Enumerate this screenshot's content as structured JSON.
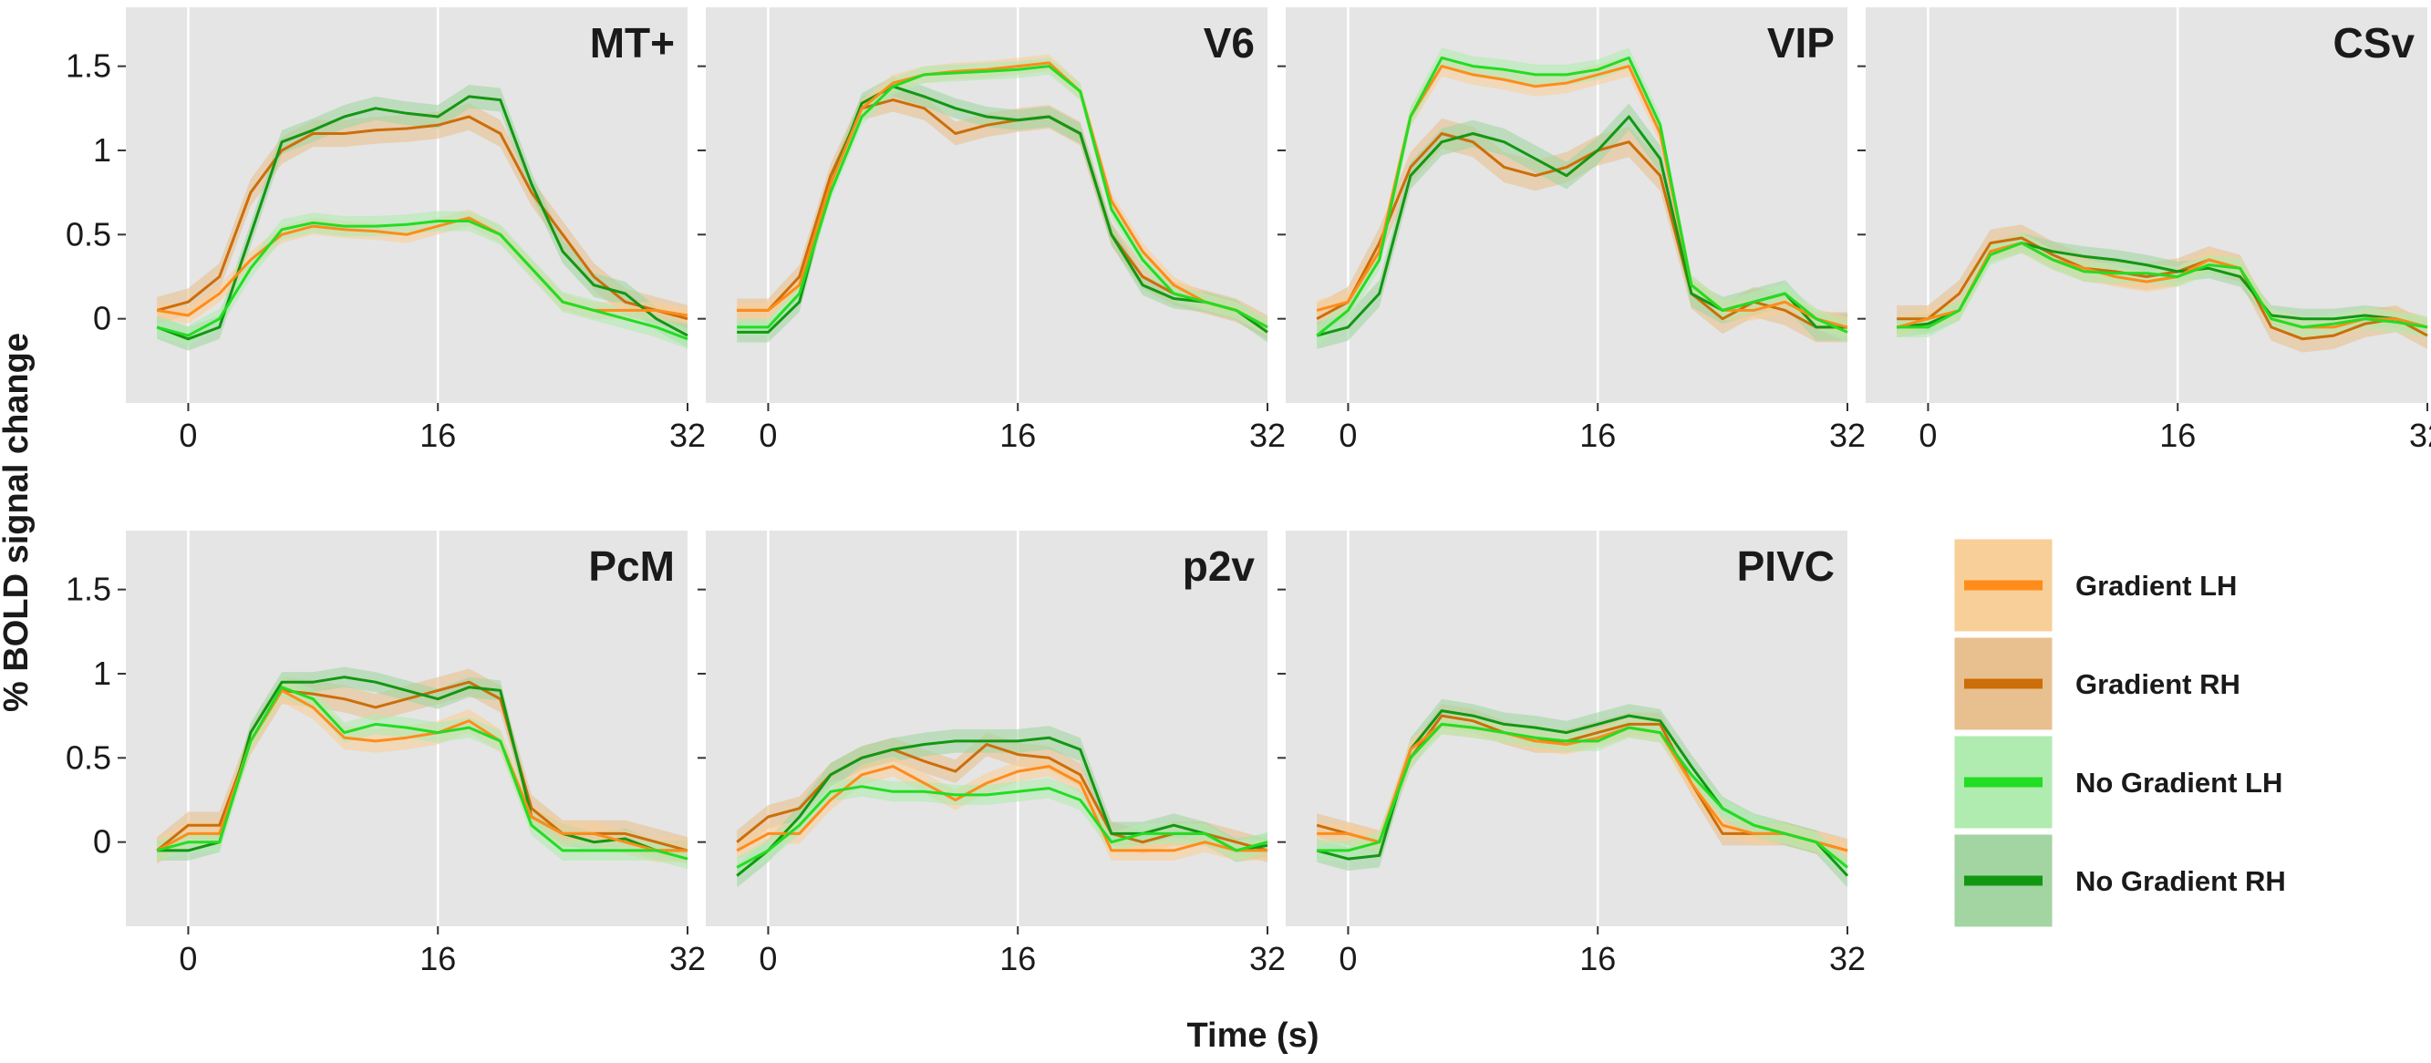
{
  "chart_data": {
    "type": "line",
    "ylabel": "% BOLD signal change",
    "xlabel": "Time (s)",
    "xlim": [
      -4,
      32
    ],
    "ylim": [
      -0.5,
      1.85
    ],
    "x_ticks": [
      0,
      16,
      32
    ],
    "x_tick_labels": [
      "0",
      "16",
      "32"
    ],
    "y_ticks": [
      0,
      0.5,
      1,
      1.5
    ],
    "y_tick_labels": [
      "0",
      "0.5",
      "1",
      "1.5"
    ],
    "vertical_gridlines": [
      0,
      16
    ],
    "legend": {
      "position": "right",
      "entries": [
        {
          "name": "Gradient LH",
          "line_color": "#ff8c1a",
          "band_color": "#f8cf99"
        },
        {
          "name": "Gradient RH",
          "line_color": "#cc6e0a",
          "band_color": "#e8c08f"
        },
        {
          "name": "No Gradient LH",
          "line_color": "#22dd22",
          "band_color": "#b0ebb0"
        },
        {
          "name": "No Gradient RH",
          "line_color": "#139713",
          "band_color": "#a2d5a2"
        }
      ]
    },
    "x": [
      -2,
      0,
      2,
      4,
      6,
      8,
      10,
      12,
      14,
      16,
      18,
      20,
      22,
      24,
      26,
      28,
      30,
      32
    ],
    "panels": [
      {
        "title": "MT+",
        "series": [
          {
            "name": "Gradient LH",
            "values": [
              0.05,
              0.02,
              0.15,
              0.35,
              0.5,
              0.55,
              0.53,
              0.52,
              0.5,
              0.55,
              0.6,
              0.5,
              0.3,
              0.1,
              0.05,
              0.05,
              0.05,
              0.02
            ],
            "band": 0.05
          },
          {
            "name": "Gradient RH",
            "values": [
              0.05,
              0.1,
              0.25,
              0.75,
              1.0,
              1.1,
              1.1,
              1.12,
              1.13,
              1.15,
              1.2,
              1.1,
              0.75,
              0.5,
              0.25,
              0.1,
              0.05,
              0.0
            ],
            "band": 0.08
          },
          {
            "name": "No Gradient LH",
            "values": [
              -0.05,
              -0.1,
              0.0,
              0.3,
              0.53,
              0.57,
              0.55,
              0.55,
              0.56,
              0.58,
              0.58,
              0.5,
              0.3,
              0.1,
              0.05,
              0.0,
              -0.05,
              -0.12
            ],
            "band": 0.06
          },
          {
            "name": "No Gradient RH",
            "values": [
              -0.05,
              -0.12,
              -0.05,
              0.5,
              1.05,
              1.12,
              1.2,
              1.25,
              1.22,
              1.2,
              1.32,
              1.3,
              0.8,
              0.4,
              0.2,
              0.15,
              0.0,
              -0.1
            ],
            "band": 0.07
          }
        ]
      },
      {
        "title": "V6",
        "series": [
          {
            "name": "Gradient LH",
            "values": [
              0.05,
              0.05,
              0.2,
              0.8,
              1.25,
              1.4,
              1.45,
              1.47,
              1.48,
              1.5,
              1.52,
              1.35,
              0.7,
              0.4,
              0.2,
              0.1,
              0.05,
              -0.05
            ],
            "band": 0.05
          },
          {
            "name": "Gradient RH",
            "values": [
              0.05,
              0.05,
              0.25,
              0.85,
              1.25,
              1.3,
              1.25,
              1.1,
              1.15,
              1.18,
              1.2,
              1.1,
              0.5,
              0.25,
              0.15,
              0.1,
              0.05,
              -0.05
            ],
            "band": 0.07
          },
          {
            "name": "No Gradient LH",
            "values": [
              -0.05,
              -0.05,
              0.15,
              0.75,
              1.2,
              1.38,
              1.45,
              1.46,
              1.47,
              1.48,
              1.5,
              1.35,
              0.65,
              0.35,
              0.15,
              0.1,
              0.05,
              -0.05
            ],
            "band": 0.05
          },
          {
            "name": "No Gradient RH",
            "values": [
              -0.08,
              -0.08,
              0.1,
              0.8,
              1.28,
              1.38,
              1.32,
              1.25,
              1.2,
              1.18,
              1.2,
              1.1,
              0.5,
              0.2,
              0.12,
              0.1,
              0.05,
              -0.08
            ],
            "band": 0.06
          }
        ]
      },
      {
        "title": "VIP",
        "series": [
          {
            "name": "Gradient LH",
            "values": [
              0.05,
              0.1,
              0.4,
              1.2,
              1.5,
              1.45,
              1.42,
              1.38,
              1.4,
              1.45,
              1.5,
              1.1,
              0.2,
              0.05,
              0.05,
              0.1,
              0.0,
              -0.05
            ],
            "band": 0.06
          },
          {
            "name": "Gradient RH",
            "values": [
              0.0,
              0.1,
              0.45,
              0.9,
              1.1,
              1.05,
              0.9,
              0.85,
              0.9,
              1.0,
              1.05,
              0.85,
              0.15,
              0.0,
              0.1,
              0.05,
              -0.05,
              -0.05
            ],
            "band": 0.09
          },
          {
            "name": "No Gradient LH",
            "values": [
              -0.1,
              0.05,
              0.35,
              1.2,
              1.55,
              1.5,
              1.48,
              1.45,
              1.45,
              1.48,
              1.55,
              1.15,
              0.2,
              0.05,
              0.1,
              0.15,
              0.0,
              -0.08
            ],
            "band": 0.06
          },
          {
            "name": "No Gradient RH",
            "values": [
              -0.1,
              -0.05,
              0.15,
              0.85,
              1.05,
              1.1,
              1.05,
              0.95,
              0.85,
              1.0,
              1.2,
              0.95,
              0.15,
              0.05,
              0.1,
              0.15,
              -0.05,
              -0.05
            ],
            "band": 0.08
          }
        ]
      },
      {
        "title": "CSv",
        "series": [
          {
            "name": "Gradient LH",
            "values": [
              -0.05,
              0.0,
              0.05,
              0.4,
              0.45,
              0.35,
              0.3,
              0.25,
              0.22,
              0.25,
              0.35,
              0.3,
              0.0,
              -0.05,
              -0.05,
              0.0,
              0.0,
              -0.05
            ],
            "band": 0.06
          },
          {
            "name": "Gradient RH",
            "values": [
              0.0,
              0.0,
              0.15,
              0.45,
              0.48,
              0.38,
              0.3,
              0.28,
              0.25,
              0.28,
              0.35,
              0.3,
              -0.05,
              -0.12,
              -0.1,
              -0.03,
              0.0,
              -0.1
            ],
            "band": 0.08
          },
          {
            "name": "No Gradient LH",
            "values": [
              -0.05,
              -0.05,
              0.05,
              0.38,
              0.45,
              0.35,
              0.28,
              0.27,
              0.27,
              0.25,
              0.32,
              0.3,
              0.0,
              -0.05,
              -0.03,
              0.0,
              -0.02,
              -0.05
            ],
            "band": 0.06
          },
          {
            "name": "No Gradient RH",
            "values": [
              -0.05,
              -0.03,
              0.05,
              0.4,
              0.45,
              0.4,
              0.37,
              0.35,
              0.32,
              0.28,
              0.3,
              0.25,
              0.02,
              0.0,
              0.0,
              0.02,
              0.0,
              -0.05
            ],
            "band": 0.06
          }
        ]
      },
      {
        "title": "PcM",
        "series": [
          {
            "name": "Gradient LH",
            "values": [
              -0.05,
              0.05,
              0.05,
              0.6,
              0.9,
              0.8,
              0.62,
              0.6,
              0.62,
              0.65,
              0.72,
              0.6,
              0.15,
              0.05,
              0.05,
              0.0,
              -0.05,
              -0.05
            ],
            "band": 0.07
          },
          {
            "name": "Gradient RH",
            "values": [
              -0.05,
              0.1,
              0.1,
              0.6,
              0.9,
              0.88,
              0.85,
              0.8,
              0.85,
              0.9,
              0.95,
              0.85,
              0.2,
              0.05,
              0.05,
              0.05,
              0.0,
              -0.05
            ],
            "band": 0.08
          },
          {
            "name": "No Gradient LH",
            "values": [
              -0.05,
              0.0,
              0.0,
              0.6,
              0.92,
              0.85,
              0.65,
              0.7,
              0.68,
              0.65,
              0.68,
              0.6,
              0.1,
              -0.05,
              -0.05,
              -0.05,
              -0.05,
              -0.1
            ],
            "band": 0.06
          },
          {
            "name": "No Gradient RH",
            "values": [
              -0.05,
              -0.05,
              0.0,
              0.65,
              0.95,
              0.95,
              0.98,
              0.95,
              0.9,
              0.85,
              0.92,
              0.9,
              0.15,
              0.05,
              0.0,
              0.02,
              -0.05,
              -0.05
            ],
            "band": 0.06
          }
        ]
      },
      {
        "title": "p2v",
        "series": [
          {
            "name": "Gradient LH",
            "values": [
              -0.05,
              0.05,
              0.05,
              0.25,
              0.4,
              0.45,
              0.35,
              0.25,
              0.35,
              0.42,
              0.45,
              0.35,
              -0.05,
              -0.05,
              -0.05,
              0.0,
              -0.05,
              -0.05
            ],
            "band": 0.06
          },
          {
            "name": "Gradient RH",
            "values": [
              0.0,
              0.15,
              0.2,
              0.4,
              0.5,
              0.55,
              0.48,
              0.42,
              0.58,
              0.52,
              0.5,
              0.4,
              0.05,
              0.0,
              0.05,
              0.05,
              0.0,
              -0.05
            ],
            "band": 0.07
          },
          {
            "name": "No Gradient LH",
            "values": [
              -0.15,
              -0.05,
              0.1,
              0.3,
              0.33,
              0.3,
              0.3,
              0.28,
              0.28,
              0.3,
              0.32,
              0.25,
              0.0,
              0.05,
              0.05,
              0.05,
              -0.05,
              0.0
            ],
            "band": 0.06
          },
          {
            "name": "No Gradient RH",
            "values": [
              -0.2,
              -0.05,
              0.15,
              0.4,
              0.5,
              0.55,
              0.58,
              0.6,
              0.6,
              0.6,
              0.62,
              0.55,
              0.05,
              0.05,
              0.1,
              0.05,
              -0.05,
              -0.02
            ],
            "band": 0.07
          }
        ]
      },
      {
        "title": "PIVC",
        "series": [
          {
            "name": "Gradient LH",
            "values": [
              0.05,
              0.05,
              0.0,
              0.55,
              0.7,
              0.68,
              0.65,
              0.6,
              0.58,
              0.62,
              0.68,
              0.65,
              0.35,
              0.1,
              0.05,
              0.05,
              0.0,
              -0.05
            ],
            "band": 0.06
          },
          {
            "name": "Gradient RH",
            "values": [
              0.1,
              0.05,
              0.0,
              0.5,
              0.75,
              0.72,
              0.65,
              0.6,
              0.6,
              0.65,
              0.7,
              0.7,
              0.35,
              0.05,
              0.05,
              0.05,
              0.0,
              -0.05
            ],
            "band": 0.07
          },
          {
            "name": "No Gradient LH",
            "values": [
              -0.05,
              -0.05,
              0.0,
              0.5,
              0.7,
              0.68,
              0.65,
              0.62,
              0.6,
              0.6,
              0.68,
              0.65,
              0.4,
              0.2,
              0.1,
              0.05,
              0.0,
              -0.15
            ],
            "band": 0.06
          },
          {
            "name": "No Gradient RH",
            "values": [
              -0.05,
              -0.1,
              -0.08,
              0.55,
              0.78,
              0.75,
              0.7,
              0.68,
              0.65,
              0.7,
              0.75,
              0.72,
              0.45,
              0.2,
              0.1,
              0.05,
              0.0,
              -0.2
            ],
            "band": 0.07
          }
        ]
      }
    ]
  }
}
